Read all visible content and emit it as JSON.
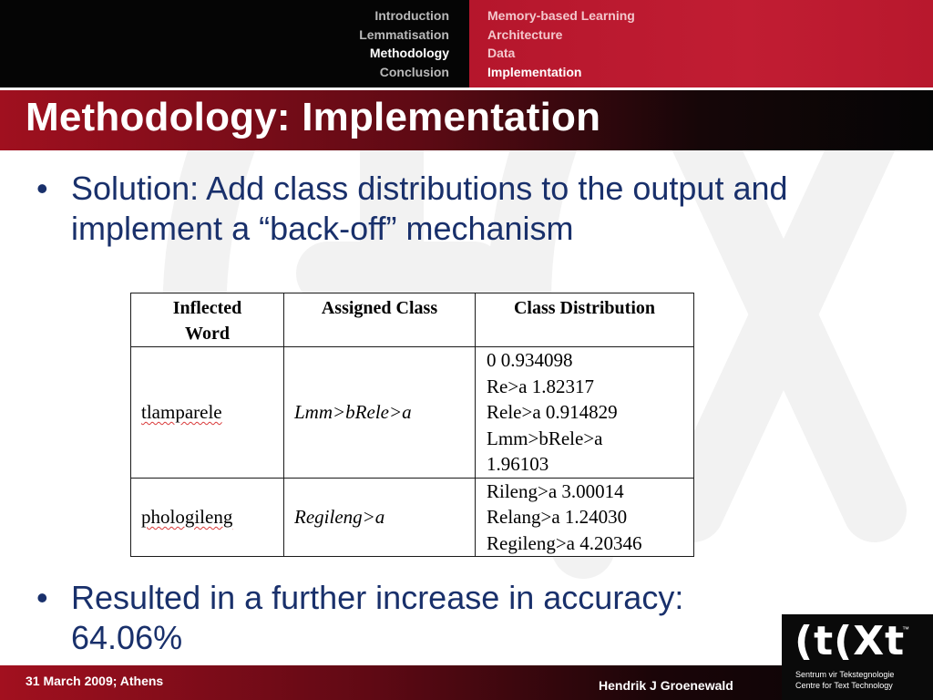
{
  "nav": {
    "left": [
      {
        "label": "Introduction",
        "active": false
      },
      {
        "label": "Lemmatisation",
        "active": false
      },
      {
        "label": "Methodology",
        "active": true
      },
      {
        "label": "Conclusion",
        "active": false
      }
    ],
    "right": [
      {
        "label": "Memory-based Learning",
        "active": false
      },
      {
        "label": "Architecture",
        "active": false
      },
      {
        "label": "Data",
        "active": false
      },
      {
        "label": "Implementation",
        "active": true
      }
    ]
  },
  "slide": {
    "title": "Methodology: Implementation",
    "bullet_1": "Solution: Add class distributions to the output and implement a “back-off” mechanism",
    "bullet_2": "Resulted in a further increase in accuracy: 64.06%",
    "bullet_glyph": "•"
  },
  "table": {
    "headers": [
      "Inflected Word",
      "Assigned Class",
      "Class Distribution"
    ],
    "rows": [
      {
        "word": "tlamparele",
        "assigned_class": "Lmm>bRele>a",
        "distribution": [
          "0 0.934098",
          "Re>a 1.82317",
          "Rele>a 0.914829",
          "Lmm>bRele>a",
          "1.96103"
        ]
      },
      {
        "word": "phologileng",
        "assigned_class": "Regileng>a",
        "distribution": [
          "Rileng>a 3.00014",
          "Relang>a 1.24030",
          "Regileng>a 4.20346"
        ]
      }
    ]
  },
  "footer": {
    "date": "31 March 2009; Athens",
    "author": "Hendrik J Groenewald"
  },
  "logo": {
    "mark": "(t(Xt",
    "tm": "™",
    "line_1": "Sentrum vir Tekstegnologie",
    "line_2": "Centre for Text Technology"
  },
  "colors": {
    "brand_red": "#c11d33",
    "bullet_text": "#19306b",
    "dark": "#050505"
  }
}
